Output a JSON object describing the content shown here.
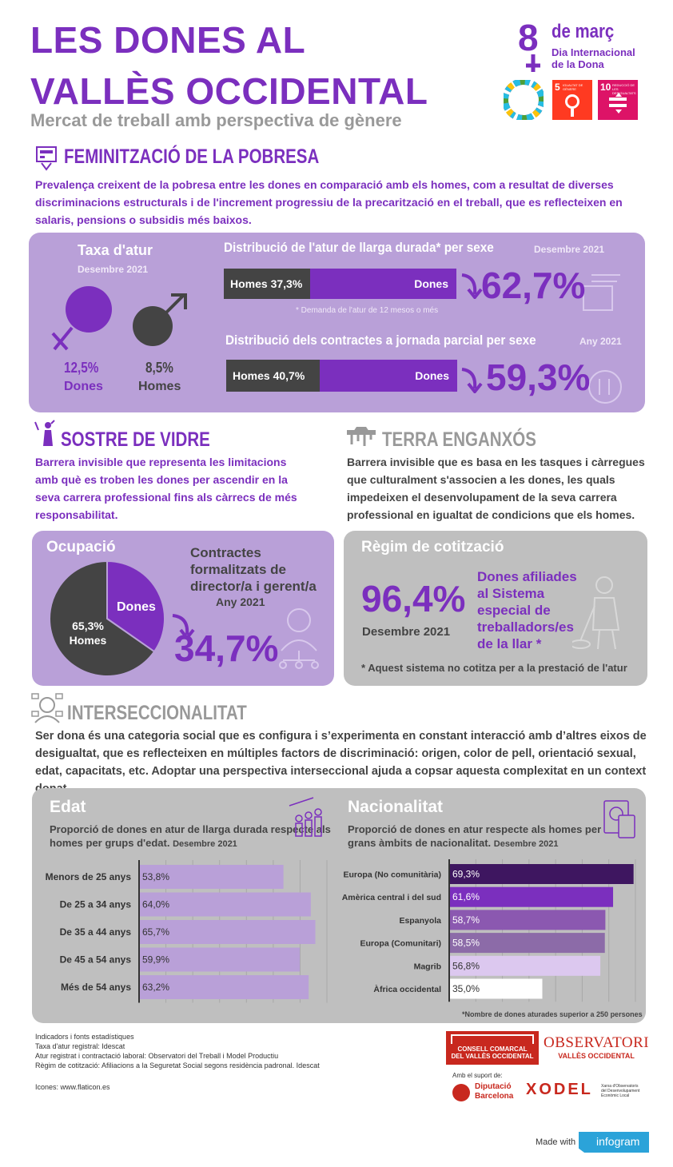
{
  "header": {
    "title_line1": "LES DONES AL",
    "title_line2": "VALLÈS OCCIDENTAL",
    "subtitle": "Mercat de treball amb perspectiva de gènere",
    "date": "de març",
    "date_num": "8",
    "event_line1": "Dia Internacional",
    "event_line2": "de la Dona",
    "sdg5_num": "5",
    "sdg5_text": "IGUALTAT DE GÈNERE",
    "sdg10_num": "10",
    "sdg10_text": "REDUCCIÓ DE LES DESIGUALTATS"
  },
  "poverty": {
    "heading": "FEMINITZACIÓ DE LA POBRESA",
    "text": "Prevalença creixent de la pobresa entre les dones en comparació amb els homes, com a resultat de diverses discriminacions estructurals i de l'increment progressiu de la precarització en el treball, que es reflecteixen en salaris, pensions o subsidis més baixos.",
    "unemp_title": "Taxa d'atur",
    "unemp_date": "Desembre 2021",
    "women_val": "12,5%",
    "women_label": "Dones",
    "men_val": "8,5%",
    "men_label": "Homes",
    "ltu_title": "Distribució de l'atur de llarga durada* per sexe",
    "ltu_date": "Desembre 2021",
    "ltu_men": "Homes 37,3%",
    "ltu_women": "Dones",
    "ltu_big": "62,7%",
    "ltu_note": "* Demanda de l'atur de 12 mesos o més",
    "pt_title": "Distribució dels contractes a jornada parcial per sexe",
    "pt_date": "Any 2021",
    "pt_men": "Homes 40,7%",
    "pt_women": "Dones",
    "pt_big": "59,3%"
  },
  "glass": {
    "heading": "SOSTRE DE VIDRE",
    "text": "Barrera invisible que representa les limitacions amb què es troben les dones per ascendir en la seva carrera professional fins als càrrecs de més responsabilitat.",
    "panel_title": "Ocupació",
    "desc1": "Contractes",
    "desc2": "formalitzats de",
    "desc3": "director/a i gerent/a",
    "date": "Any 2021",
    "big": "34,7%",
    "pie_women": "Dones",
    "pie_men_val": "65,3%",
    "pie_men": "Homes"
  },
  "sticky": {
    "heading": "TERRA ENGANXÓS",
    "text": "Barrera invisible que es basa en les tasques i càrregues que culturalment s'associen a les dones, les quals impedeixen el desenvolupament de la seva carrera professional en igualtat de condicions que els homes.",
    "panel_title": "Règim de cotització",
    "big": "96,4%",
    "date": "Desembre 2021",
    "desc1": "Dones afiliades",
    "desc2": "al Sistema",
    "desc3": "especial de",
    "desc4": "treballadors/es",
    "desc5": "de la llar *",
    "note": "* Aquest sistema no cotitza per a la prestació de l'atur"
  },
  "inter": {
    "heading": "INTERSECCIONALITAT",
    "text": "Ser dona és una categoria social que es configura i s’experimenta en constant interacció amb d’altres eixos de desigualtat, que es reflecteixen en múltiples factors de discriminació: origen, color de pell, orientació sexual, edat, capacitats, etc. Adoptar una perspectiva interseccional ajuda a copsar aquesta complexitat en un context donat."
  },
  "chart_data": [
    {
      "type": "bar",
      "title": "Edat",
      "subtitle": "Proporció de dones en atur de llarga durada respecte als homes per grups d'edat.",
      "date": "Desembre 2021",
      "categories": [
        "Menors de 25 anys",
        "De 25 a 34 anys",
        "De 35 a 44 anys",
        "De 45 a 54 anys",
        "Més de 54 anys"
      ],
      "values": [
        53.8,
        64.0,
        65.7,
        59.9,
        63.2
      ],
      "labels": [
        "53,8%",
        "64,0%",
        "65,7%",
        "59,9%",
        "63,2%"
      ],
      "colors": [
        "#b9a0d8",
        "#b9a0d8",
        "#b9a0d8",
        "#b9a0d8",
        "#b9a0d8"
      ],
      "xlim": [
        0,
        70
      ]
    },
    {
      "type": "bar",
      "title": "Nacionalitat",
      "subtitle": "Proporció de dones en atur respecte als homes per grans àmbits de nacionalitat.",
      "date": "Desembre 2021",
      "categories": [
        "Europa (No comunitària)",
        "Amèrica central i del sud",
        "Espanyola",
        "Europa (Comunitari)",
        "Magrib",
        "Àfrica occidental"
      ],
      "values": [
        69.3,
        61.6,
        58.7,
        58.5,
        56.8,
        35.0
      ],
      "labels": [
        "69,3%",
        "61,6%",
        "58,7%",
        "58,5%",
        "56,8%",
        "35,0%"
      ],
      "colors": [
        "#3e1660",
        "#7b2fbe",
        "#8b58b0",
        "#8c6ba8",
        "#dcc8ef",
        "#ffffff"
      ],
      "xlim": [
        0,
        70
      ],
      "note": "*Nombre de dones aturades superior a 250 persones"
    }
  ],
  "footer": {
    "sources_title": "Indicadors i fonts estadístiques",
    "src1": "Taxa d'atur registral: Idescat",
    "src2": "Atur registrat i contractació laboral: Observatori del Treball i Model Productiu",
    "src3": "Règim de cotització: Afiliacions a la Seguretat Social segons residència padronal. Idescat",
    "icons": "Icones: www.flaticon.es",
    "consell1": "CONSELL COMARCAL",
    "consell2": "DEL VALLÈS OCCIDENTAL",
    "obs1": "OBSERVATORI",
    "obs2": "VALLÈS OCCIDENTAL",
    "support": "Amb el suport de:",
    "dipu1": "Diputació",
    "dipu2": "Barcelona",
    "xodel": "XODEL",
    "xodel_desc1": "Xarxa d'Observatoris",
    "xodel_desc2": "del Desenvolupament",
    "xodel_desc3": "Econòmic Local",
    "made_with": "Made with",
    "infogram": "infogram"
  }
}
